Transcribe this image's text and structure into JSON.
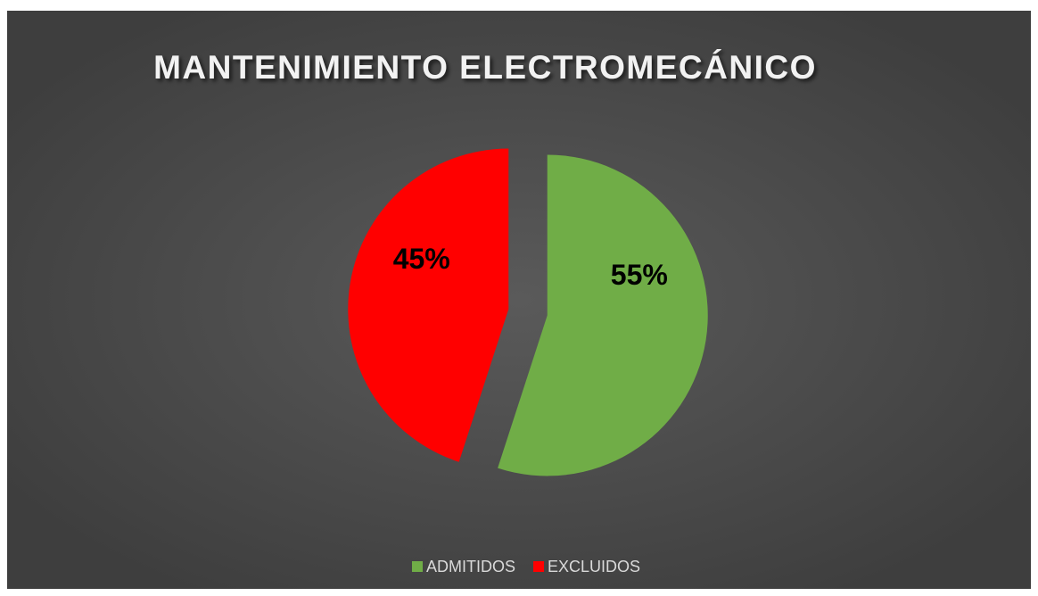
{
  "chart_data": {
    "type": "pie",
    "title": "MANTENIMIENTO ELECTROMECÁNICO",
    "categories": [
      "ADMITIDOS",
      "EXCLUIDOS"
    ],
    "values": [
      55,
      45
    ],
    "value_labels": [
      "55%",
      "45%"
    ],
    "colors": [
      "#70ad47",
      "#ff0000"
    ],
    "legend": "bottom"
  }
}
